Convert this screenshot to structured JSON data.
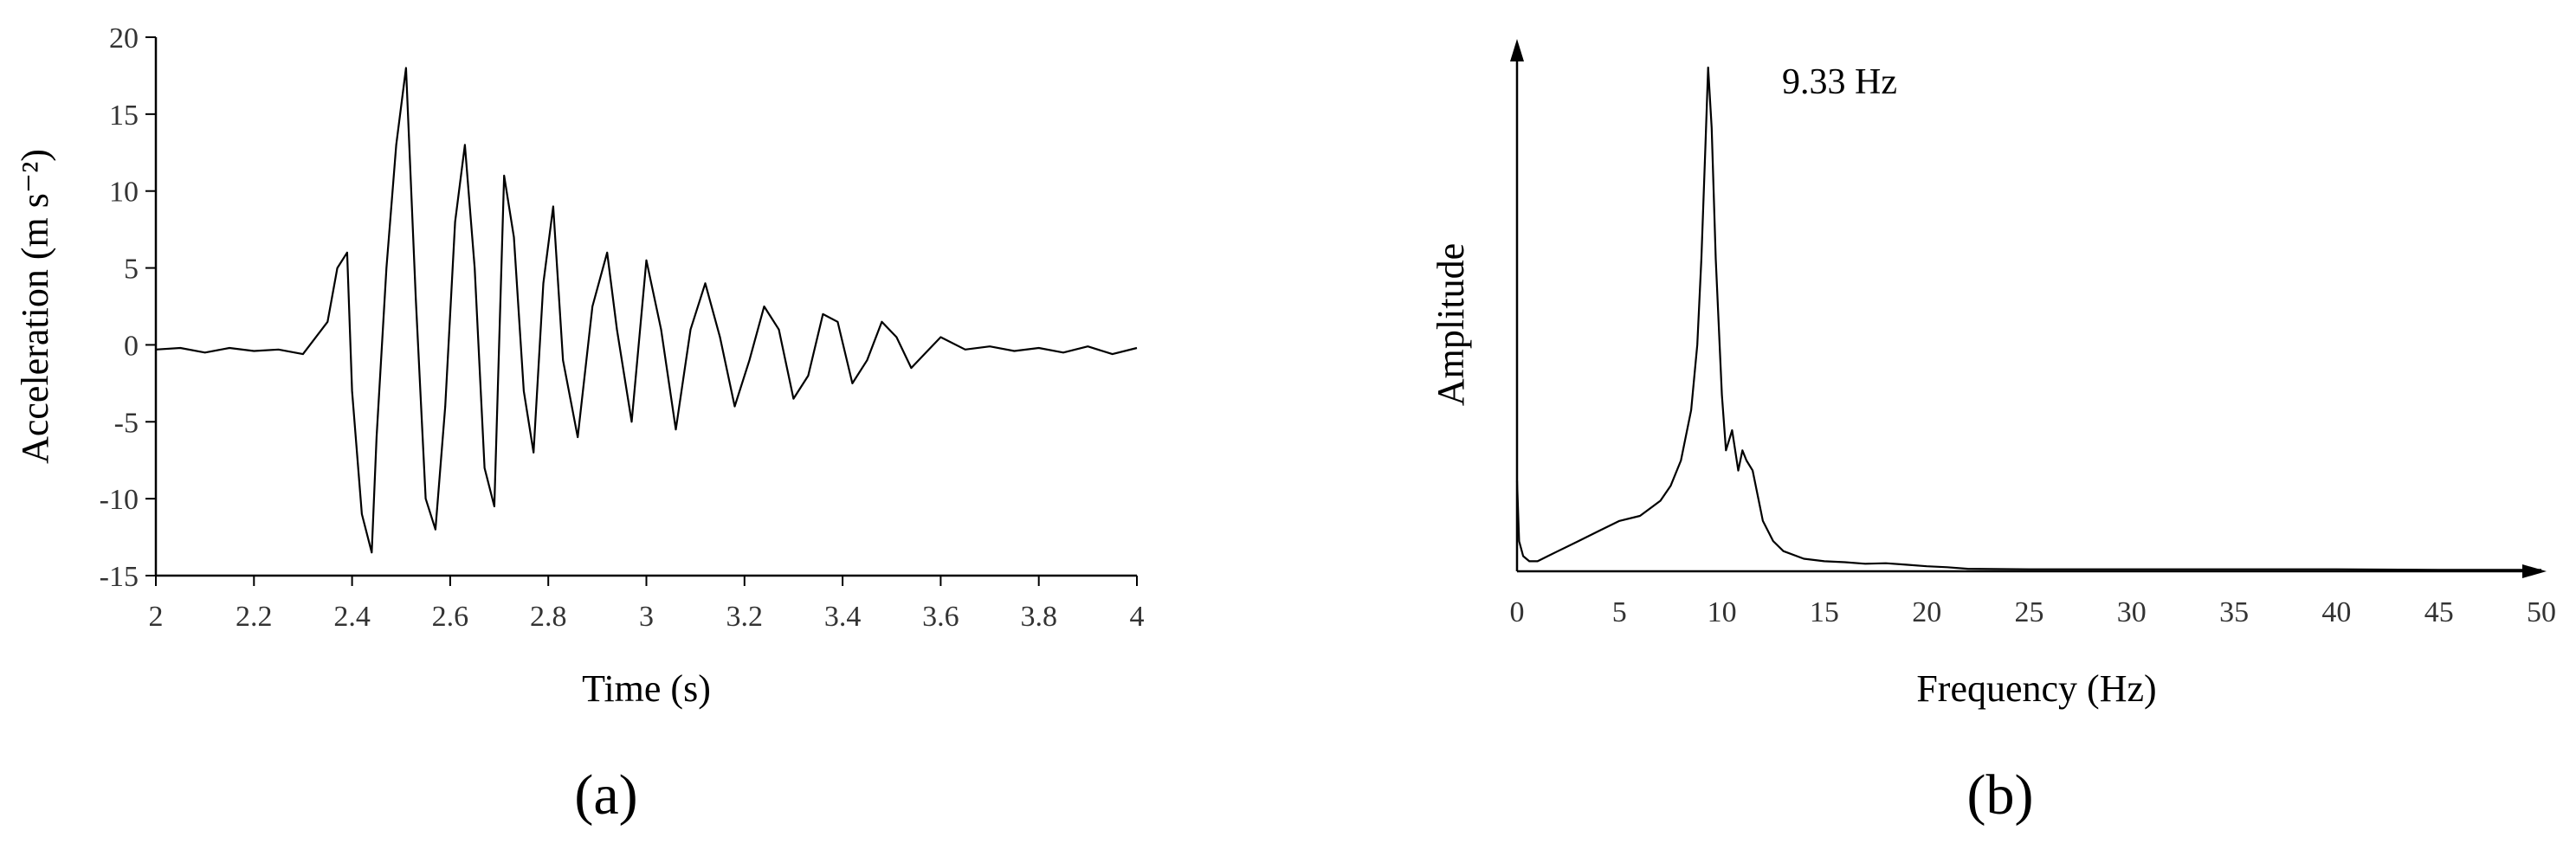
{
  "chart_data": [
    {
      "type": "line",
      "panel_label": "(a)",
      "title": "",
      "xlabel": "Time (s)",
      "ylabel": "Acceleration (m s⁻²)",
      "xlim": [
        2,
        4
      ],
      "ylim": [
        -15,
        20
      ],
      "xticks": [
        "2",
        "2.2",
        "2.4",
        "2.6",
        "2.8",
        "3",
        "3.2",
        "3.4",
        "3.6",
        "3.8",
        "4"
      ],
      "yticks": [
        "-15",
        "-10",
        "-5",
        "0",
        "5",
        "10",
        "15",
        "20"
      ],
      "grid": false,
      "series": [
        {
          "x": [
            2.0,
            2.05,
            2.1,
            2.15,
            2.2,
            2.25,
            2.3,
            2.35,
            2.37,
            2.39,
            2.4,
            2.42,
            2.44,
            2.45,
            2.47,
            2.49,
            2.51,
            2.53,
            2.55,
            2.57,
            2.59,
            2.61,
            2.63,
            2.65,
            2.67,
            2.69,
            2.71,
            2.73,
            2.75,
            2.77,
            2.79,
            2.81,
            2.83,
            2.86,
            2.89,
            2.92,
            2.94,
            2.97,
            3.0,
            3.03,
            3.06,
            3.09,
            3.12,
            3.15,
            3.18,
            3.21,
            3.24,
            3.27,
            3.3,
            3.33,
            3.36,
            3.39,
            3.42,
            3.45,
            3.48,
            3.51,
            3.54,
            3.57,
            3.6,
            3.65,
            3.7,
            3.75,
            3.8,
            3.85,
            3.9,
            3.95,
            4.0
          ],
          "y": [
            -0.3,
            -0.2,
            -0.5,
            -0.2,
            -0.4,
            -0.3,
            -0.6,
            1.5,
            5.0,
            6.0,
            -3.0,
            -11.0,
            -13.5,
            -6.0,
            5.0,
            13.0,
            18.0,
            3.0,
            -10.0,
            -12.0,
            -4.0,
            8.0,
            13.0,
            5.0,
            -8.0,
            -10.5,
            11.0,
            7.0,
            -3.0,
            -7.0,
            4.0,
            9.0,
            -1.0,
            -6.0,
            2.5,
            6.0,
            1.0,
            -5.0,
            5.5,
            1.0,
            -5.5,
            1.0,
            4.0,
            0.5,
            -4.0,
            -1.0,
            2.5,
            1.0,
            -3.5,
            -2.0,
            2.0,
            1.5,
            -2.5,
            -1.0,
            1.5,
            0.5,
            -1.5,
            -0.5,
            0.5,
            -0.3,
            -0.1,
            -0.4,
            -0.2,
            -0.5,
            -0.1,
            -0.6,
            -0.2
          ]
        }
      ]
    },
    {
      "type": "line",
      "panel_label": "(b)",
      "title": "",
      "xlabel": "Frequency (Hz)",
      "ylabel": "Amplitude",
      "xlim": [
        0,
        50
      ],
      "ylim": [
        0,
        1.0
      ],
      "xticks": [
        "0",
        "5",
        "10",
        "15",
        "20",
        "25",
        "30",
        "35",
        "40",
        "45",
        "50"
      ],
      "yticks": [],
      "grid": false,
      "annotations": [
        {
          "text": "9.33 Hz",
          "x": 9.33,
          "y": 1.0
        }
      ],
      "series": [
        {
          "x": [
            0.0,
            0.1,
            0.3,
            0.6,
            1.0,
            1.5,
            2.0,
            3.0,
            4.0,
            5.0,
            6.0,
            7.0,
            7.5,
            8.0,
            8.5,
            8.8,
            9.0,
            9.2,
            9.33,
            9.5,
            9.7,
            10.0,
            10.2,
            10.5,
            10.8,
            11.0,
            11.2,
            11.5,
            11.8,
            12.0,
            12.5,
            13.0,
            14.0,
            15.0,
            16.0,
            17.0,
            18.0,
            19.0,
            20.0,
            21.0,
            22.0,
            25.0,
            30.0,
            35.0,
            40.0,
            45.0,
            50.0
          ],
          "y": [
            0.18,
            0.06,
            0.03,
            0.02,
            0.02,
            0.03,
            0.04,
            0.06,
            0.08,
            0.1,
            0.11,
            0.14,
            0.17,
            0.22,
            0.32,
            0.45,
            0.62,
            0.85,
            1.0,
            0.88,
            0.62,
            0.35,
            0.24,
            0.28,
            0.2,
            0.24,
            0.22,
            0.2,
            0.14,
            0.1,
            0.06,
            0.04,
            0.025,
            0.02,
            0.018,
            0.015,
            0.016,
            0.013,
            0.01,
            0.008,
            0.005,
            0.004,
            0.004,
            0.004,
            0.004,
            0.003,
            0.003
          ]
        }
      ]
    }
  ]
}
